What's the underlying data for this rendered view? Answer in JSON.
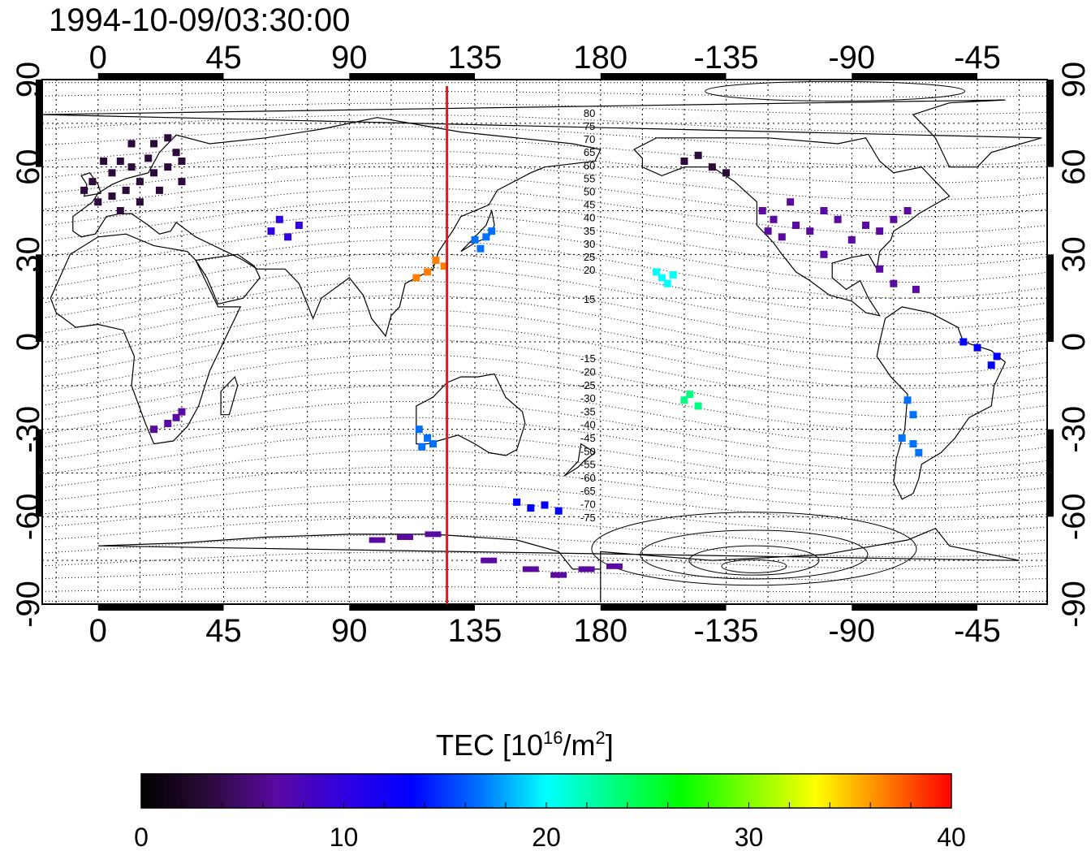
{
  "title": "1994-10-09/03:30:00",
  "map": {
    "lon_ticks": [
      "0",
      "45",
      "90",
      "135",
      "180",
      "-135",
      "-90",
      "-45"
    ],
    "lat_ticks": [
      "90",
      "60",
      "30",
      "0",
      "-30",
      "-60",
      "-90"
    ],
    "lon_values": [
      0,
      45,
      90,
      135,
      180,
      225,
      270,
      315
    ],
    "lat_values": [
      90,
      60,
      30,
      0,
      -30,
      -60,
      -90
    ],
    "lon_range": [
      -20,
      340
    ],
    "lat_range": [
      -90,
      90
    ],
    "meridian_line": {
      "lon": 125,
      "color": "#e8141b"
    },
    "mag_lat_labels_north": [
      "80",
      "75",
      "70",
      "65",
      "60",
      "55",
      "50",
      "45",
      "40",
      "35",
      "30",
      "25",
      "20",
      "15"
    ],
    "mag_lat_labels_south": [
      "-15",
      "-20",
      "-25",
      "-30",
      "-35",
      "-40",
      "-45",
      "-50",
      "-55",
      "-60",
      "-65",
      "-70",
      "-75"
    ]
  },
  "colorbar": {
    "title_main": "TEC  [10",
    "title_sup1": "16",
    "title_mid": "/m",
    "title_sup2": "2",
    "title_end": "]",
    "ticks": [
      "0",
      "10",
      "20",
      "30",
      "40"
    ],
    "range": [
      0,
      40
    ]
  },
  "colors": {
    "scale": [
      "#000000",
      "#2c0a3c",
      "#5a0aa0",
      "#3000e0",
      "#0000ff",
      "#0070ff",
      "#00ffff",
      "#00ff80",
      "#00ff00",
      "#80ff00",
      "#ffff00",
      "#ff8000",
      "#ff0000"
    ]
  },
  "tec_clusters": [
    {
      "region": "europe",
      "value": 3,
      "points": [
        [
          5,
          58
        ],
        [
          8,
          62
        ],
        [
          12,
          60
        ],
        [
          15,
          55
        ],
        [
          18,
          63
        ],
        [
          20,
          58
        ],
        [
          22,
          52
        ],
        [
          25,
          60
        ],
        [
          28,
          65
        ],
        [
          30,
          55
        ],
        [
          10,
          52
        ],
        [
          5,
          50
        ],
        [
          -2,
          55
        ],
        [
          0,
          48
        ],
        [
          15,
          48
        ],
        [
          8,
          45
        ],
        [
          12,
          68
        ],
        [
          20,
          68
        ],
        [
          25,
          70
        ],
        [
          30,
          62
        ],
        [
          -5,
          52
        ],
        [
          2,
          62
        ]
      ]
    },
    {
      "region": "central-asia",
      "value": 10,
      "points": [
        [
          62,
          38
        ],
        [
          65,
          42
        ],
        [
          68,
          36
        ],
        [
          72,
          40
        ]
      ]
    },
    {
      "region": "east-asia",
      "value": 38,
      "points": [
        [
          118,
          24
        ],
        [
          121,
          28
        ],
        [
          124,
          26
        ],
        [
          114,
          22
        ]
      ]
    },
    {
      "region": "japan",
      "value": 16,
      "points": [
        [
          135,
          35
        ],
        [
          139,
          36
        ],
        [
          141,
          38
        ],
        [
          137,
          32
        ]
      ]
    },
    {
      "region": "hawaii",
      "value": 21,
      "points": [
        [
          -158,
          22
        ],
        [
          -156,
          20
        ],
        [
          -154,
          23
        ],
        [
          -160,
          24
        ]
      ]
    },
    {
      "region": "north-america",
      "value": 6,
      "points": [
        [
          -120,
          38
        ],
        [
          -118,
          42
        ],
        [
          -115,
          36
        ],
        [
          -110,
          40
        ],
        [
          -105,
          38
        ],
        [
          -122,
          45
        ],
        [
          -112,
          48
        ],
        [
          -100,
          45
        ],
        [
          -95,
          42
        ],
        [
          -85,
          40
        ],
        [
          -80,
          38
        ],
        [
          -75,
          42
        ],
        [
          -70,
          45
        ],
        [
          -90,
          35
        ],
        [
          -100,
          30
        ]
      ]
    },
    {
      "region": "alaska",
      "value": 4,
      "points": [
        [
          -150,
          62
        ],
        [
          -145,
          64
        ],
        [
          -140,
          60
        ],
        [
          -135,
          58
        ]
      ]
    },
    {
      "region": "caribbean",
      "value": 8,
      "points": [
        [
          -80,
          25
        ],
        [
          -75,
          20
        ],
        [
          -67,
          18
        ]
      ]
    },
    {
      "region": "brazil",
      "value": 14,
      "points": [
        [
          -45,
          -2
        ],
        [
          -40,
          -8
        ],
        [
          -38,
          -5
        ],
        [
          -50,
          0
        ]
      ]
    },
    {
      "region": "south-america",
      "value": 16,
      "points": [
        [
          -70,
          -20
        ],
        [
          -68,
          -25
        ],
        [
          -72,
          -33
        ],
        [
          -68,
          -35
        ],
        [
          -66,
          -38
        ]
      ]
    },
    {
      "region": "south-africa",
      "value": 5,
      "points": [
        [
          25,
          -28
        ],
        [
          28,
          -26
        ],
        [
          20,
          -30
        ],
        [
          30,
          -24
        ]
      ]
    },
    {
      "region": "west-australia",
      "value": 16,
      "points": [
        [
          115,
          -30
        ],
        [
          118,
          -33
        ],
        [
          120,
          -35
        ],
        [
          116,
          -36
        ]
      ]
    },
    {
      "region": "south-pacific",
      "value": 22,
      "points": [
        [
          -148,
          -18
        ],
        [
          -145,
          -22
        ],
        [
          -150,
          -20
        ]
      ]
    },
    {
      "region": "south-ocean",
      "value": 12,
      "points": [
        [
          150,
          -55
        ],
        [
          155,
          -57
        ],
        [
          160,
          -56
        ],
        [
          165,
          -58
        ]
      ]
    },
    {
      "region": "antarctica",
      "value": 8,
      "points": [
        [
          100,
          -68
        ],
        [
          110,
          -67
        ],
        [
          120,
          -66
        ],
        [
          140,
          -75
        ],
        [
          155,
          -78
        ],
        [
          165,
          -80
        ],
        [
          175,
          -78
        ],
        [
          -175,
          -77
        ]
      ]
    }
  ]
}
